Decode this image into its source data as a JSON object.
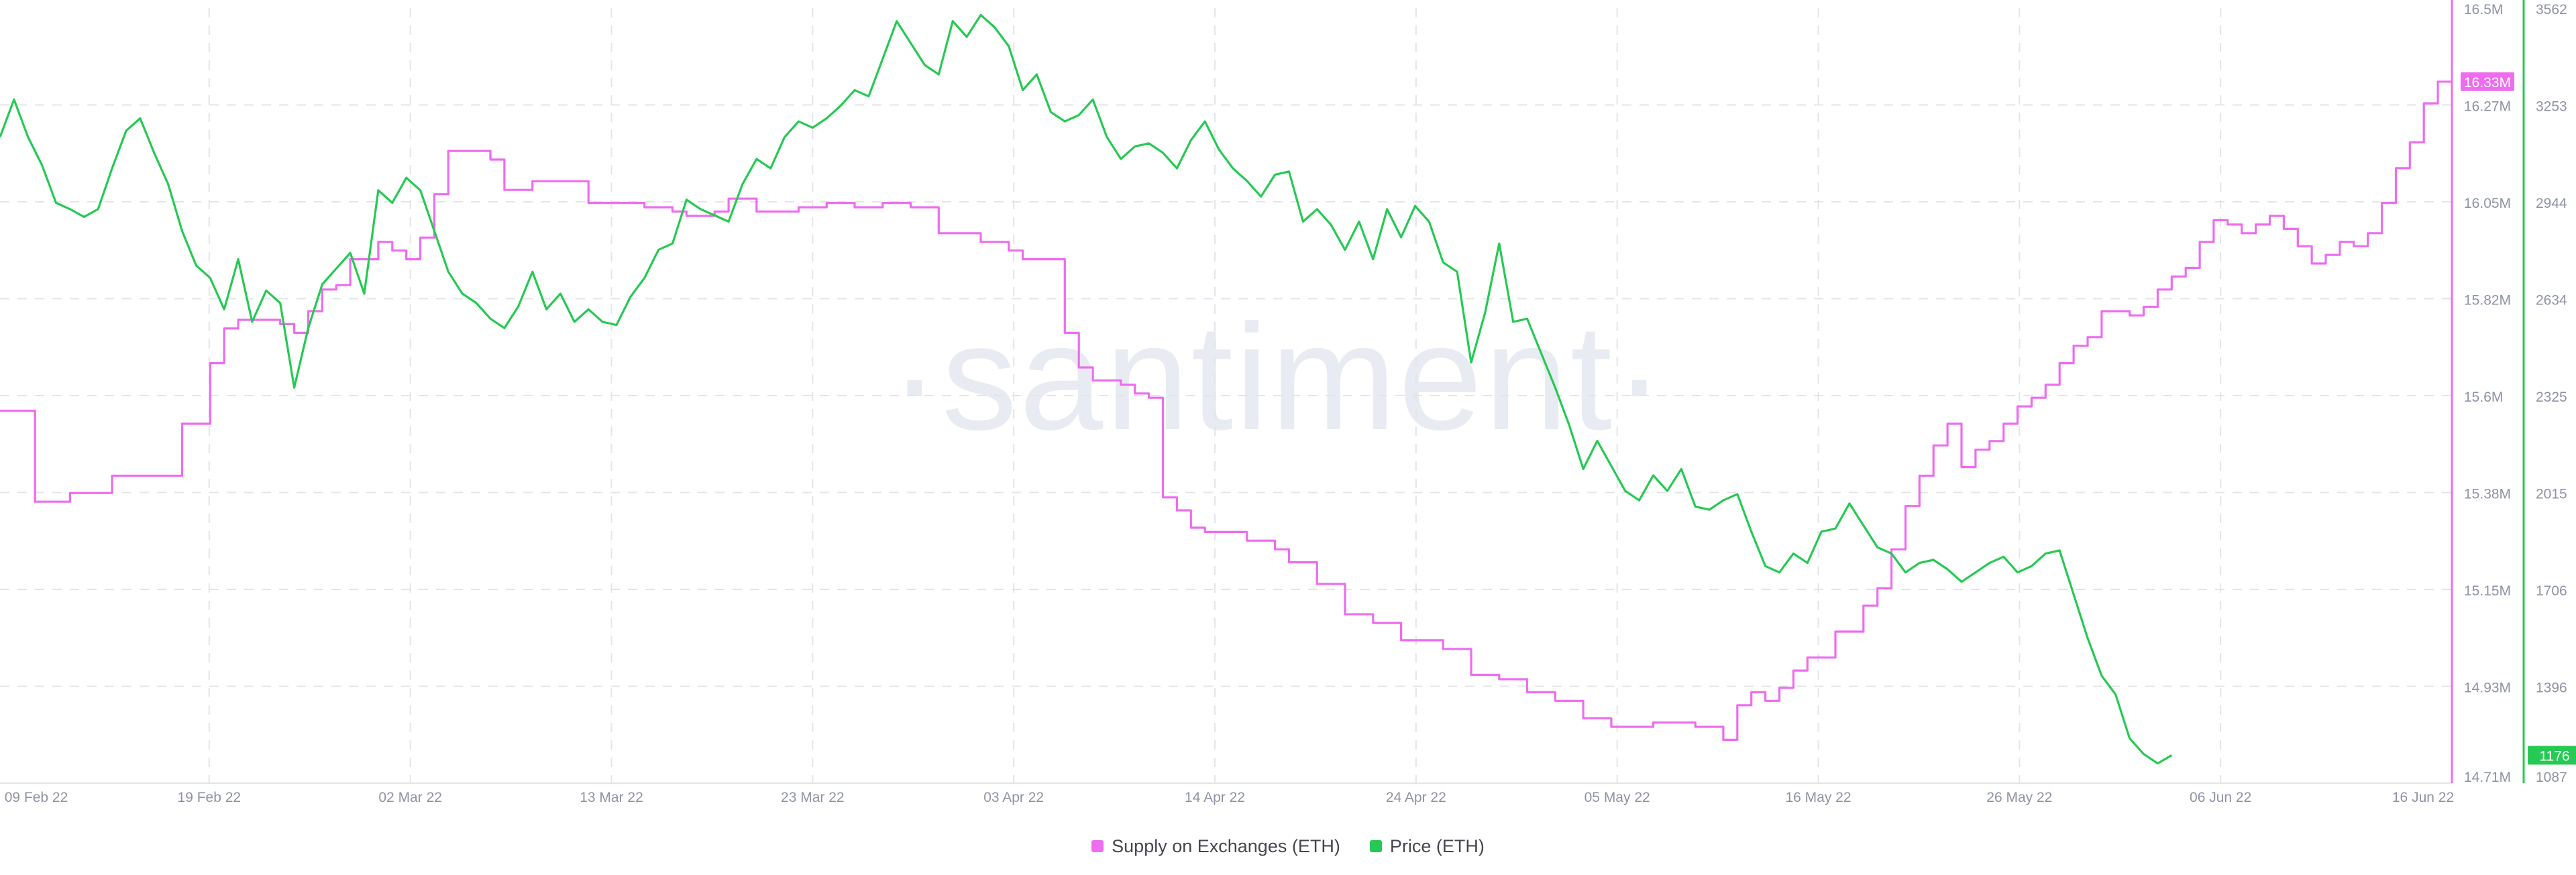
{
  "watermark": "·santiment·",
  "chart_data": {
    "type": "line",
    "x_axis": {
      "tick_labels": [
        "09 Feb 22",
        "19 Feb 22",
        "02 Mar 22",
        "13 Mar 22",
        "23 Mar 22",
        "03 Apr 22",
        "14 Apr 22",
        "24 Apr 22",
        "05 May 22",
        "16 May 22",
        "26 May 22",
        "06 Jun 22",
        "16 Jun 22"
      ],
      "range": [
        "08 Feb 22",
        "16 Jun 22"
      ]
    },
    "y_axis_left": {
      "series": "Supply on Exchanges (ETH)",
      "tick_labels": [
        "16.5M",
        "16.27M",
        "16.05M",
        "15.82M",
        "15.6M",
        "15.38M",
        "15.15M",
        "14.93M",
        "14.71M"
      ],
      "range": [
        14.71,
        16.5
      ],
      "unit": "M"
    },
    "y_axis_right": {
      "series": "Price (ETH)",
      "tick_labels": [
        "3562",
        "3253",
        "2944",
        "2634",
        "2325",
        "2015",
        "1706",
        "1396",
        "1087"
      ],
      "range": [
        1087,
        3562
      ]
    },
    "grid": true,
    "legend_position": "bottom-center",
    "series": [
      {
        "name": "Supply on Exchanges (ETH)",
        "color": "#ee6cf0",
        "axis": "left",
        "last_value_label": "16.33M",
        "points": [
          [
            0,
            15.57
          ],
          [
            2.5,
            15.36
          ],
          [
            5,
            15.38
          ],
          [
            8,
            15.42
          ],
          [
            11,
            15.42
          ],
          [
            13,
            15.54
          ],
          [
            15,
            15.68
          ],
          [
            16,
            15.76
          ],
          [
            17,
            15.78
          ],
          [
            19,
            15.78
          ],
          [
            20,
            15.77
          ],
          [
            21,
            15.75
          ],
          [
            22,
            15.8
          ],
          [
            23,
            15.85
          ],
          [
            24,
            15.86
          ],
          [
            25,
            15.92
          ],
          [
            27,
            15.96
          ],
          [
            28,
            15.94
          ],
          [
            29,
            15.92
          ],
          [
            30,
            15.97
          ],
          [
            31,
            16.07
          ],
          [
            32,
            16.17
          ],
          [
            35,
            16.15
          ],
          [
            36,
            16.08
          ],
          [
            38,
            16.1
          ],
          [
            40,
            16.1
          ],
          [
            42,
            16.05
          ],
          [
            46,
            16.04
          ],
          [
            48,
            16.03
          ],
          [
            49,
            16.02
          ],
          [
            51,
            16.03
          ],
          [
            52,
            16.06
          ],
          [
            54,
            16.03
          ],
          [
            57,
            16.04
          ],
          [
            59,
            16.05
          ],
          [
            61,
            16.04
          ],
          [
            63,
            16.05
          ],
          [
            65,
            16.04
          ],
          [
            67,
            15.98
          ],
          [
            70,
            15.96
          ],
          [
            72,
            15.94
          ],
          [
            73,
            15.92
          ],
          [
            76,
            15.75
          ],
          [
            77,
            15.67
          ],
          [
            78,
            15.64
          ],
          [
            80,
            15.63
          ],
          [
            81,
            15.61
          ],
          [
            82,
            15.6
          ],
          [
            83,
            15.37
          ],
          [
            84,
            15.34
          ],
          [
            85,
            15.3
          ],
          [
            86,
            15.29
          ],
          [
            87,
            15.29
          ],
          [
            89,
            15.27
          ],
          [
            91,
            15.25
          ],
          [
            92,
            15.22
          ],
          [
            94,
            15.17
          ],
          [
            96,
            15.1
          ],
          [
            98,
            15.08
          ],
          [
            100,
            15.04
          ],
          [
            103,
            15.02
          ],
          [
            105,
            14.96
          ],
          [
            107,
            14.95
          ],
          [
            109,
            14.92
          ],
          [
            111,
            14.9
          ],
          [
            113,
            14.86
          ],
          [
            115,
            14.84
          ],
          [
            118,
            14.85
          ],
          [
            121,
            14.84
          ],
          [
            123,
            14.81
          ],
          [
            124,
            14.89
          ],
          [
            125,
            14.92
          ],
          [
            126,
            14.9
          ],
          [
            127,
            14.93
          ],
          [
            128,
            14.97
          ],
          [
            129,
            15.0
          ],
          [
            131,
            15.06
          ],
          [
            133,
            15.12
          ],
          [
            134,
            15.16
          ],
          [
            135,
            15.25
          ],
          [
            136,
            15.35
          ],
          [
            137,
            15.42
          ],
          [
            138,
            15.49
          ],
          [
            139,
            15.54
          ],
          [
            140,
            15.44
          ],
          [
            141,
            15.48
          ],
          [
            142,
            15.5
          ],
          [
            143,
            15.54
          ],
          [
            144,
            15.58
          ],
          [
            145,
            15.6
          ],
          [
            146,
            15.63
          ],
          [
            147,
            15.68
          ],
          [
            148,
            15.72
          ],
          [
            149,
            15.74
          ],
          [
            150,
            15.8
          ],
          [
            152,
            15.79
          ],
          [
            153,
            15.81
          ],
          [
            154,
            15.85
          ],
          [
            155,
            15.88
          ],
          [
            156,
            15.9
          ],
          [
            157,
            15.96
          ],
          [
            158,
            16.01
          ],
          [
            159,
            16.0
          ],
          [
            160,
            15.98
          ],
          [
            161,
            16.0
          ],
          [
            162,
            16.02
          ],
          [
            163,
            15.99
          ],
          [
            164,
            15.95
          ],
          [
            165,
            15.91
          ],
          [
            166,
            15.93
          ],
          [
            167,
            15.96
          ],
          [
            168,
            15.95
          ],
          [
            169,
            15.98
          ],
          [
            170,
            16.05
          ],
          [
            171,
            16.13
          ],
          [
            172,
            16.19
          ],
          [
            173,
            16.28
          ],
          [
            174,
            16.33
          ],
          [
            175,
            16.33
          ]
        ]
      },
      {
        "name": "Price (ETH)",
        "color": "#26c953",
        "axis": "right",
        "last_value_label": "1176",
        "points": [
          [
            0,
            3150
          ],
          [
            1,
            3270
          ],
          [
            2,
            3150
          ],
          [
            3,
            3060
          ],
          [
            4,
            2940
          ],
          [
            5,
            2920
          ],
          [
            6,
            2895
          ],
          [
            7,
            2920
          ],
          [
            8,
            3050
          ],
          [
            9,
            3170
          ],
          [
            10,
            3210
          ],
          [
            11,
            3100
          ],
          [
            12,
            3000
          ],
          [
            13,
            2850
          ],
          [
            14,
            2740
          ],
          [
            15,
            2700
          ],
          [
            16,
            2600
          ],
          [
            17,
            2760
          ],
          [
            18,
            2560
          ],
          [
            19,
            2660
          ],
          [
            20,
            2620
          ],
          [
            21,
            2350
          ],
          [
            22,
            2540
          ],
          [
            23,
            2680
          ],
          [
            24,
            2730
          ],
          [
            25,
            2780
          ],
          [
            26,
            2650
          ],
          [
            27,
            2980
          ],
          [
            28,
            2940
          ],
          [
            29,
            3020
          ],
          [
            30,
            2980
          ],
          [
            31,
            2850
          ],
          [
            32,
            2720
          ],
          [
            33,
            2650
          ],
          [
            34,
            2620
          ],
          [
            35,
            2570
          ],
          [
            36,
            2540
          ],
          [
            37,
            2610
          ],
          [
            38,
            2720
          ],
          [
            39,
            2600
          ],
          [
            40,
            2650
          ],
          [
            41,
            2560
          ],
          [
            42,
            2600
          ],
          [
            43,
            2560
          ],
          [
            44,
            2550
          ],
          [
            45,
            2640
          ],
          [
            46,
            2700
          ],
          [
            47,
            2790
          ],
          [
            48,
            2810
          ],
          [
            49,
            2950
          ],
          [
            50,
            2920
          ],
          [
            51,
            2900
          ],
          [
            52,
            2880
          ],
          [
            53,
            3000
          ],
          [
            54,
            3080
          ],
          [
            55,
            3050
          ],
          [
            56,
            3150
          ],
          [
            57,
            3200
          ],
          [
            58,
            3180
          ],
          [
            59,
            3210
          ],
          [
            60,
            3250
          ],
          [
            61,
            3300
          ],
          [
            62,
            3280
          ],
          [
            63,
            3400
          ],
          [
            64,
            3520
          ],
          [
            65,
            3450
          ],
          [
            66,
            3380
          ],
          [
            67,
            3350
          ],
          [
            68,
            3520
          ],
          [
            69,
            3470
          ],
          [
            70,
            3540
          ],
          [
            71,
            3500
          ],
          [
            72,
            3440
          ],
          [
            73,
            3300
          ],
          [
            74,
            3350
          ],
          [
            75,
            3230
          ],
          [
            76,
            3200
          ],
          [
            77,
            3220
          ],
          [
            78,
            3270
          ],
          [
            79,
            3150
          ],
          [
            80,
            3080
          ],
          [
            81,
            3120
          ],
          [
            82,
            3130
          ],
          [
            83,
            3100
          ],
          [
            84,
            3050
          ],
          [
            85,
            3140
          ],
          [
            86,
            3200
          ],
          [
            87,
            3110
          ],
          [
            88,
            3050
          ],
          [
            89,
            3010
          ],
          [
            90,
            2960
          ],
          [
            91,
            3030
          ],
          [
            92,
            3040
          ],
          [
            93,
            2880
          ],
          [
            94,
            2920
          ],
          [
            95,
            2870
          ],
          [
            96,
            2790
          ],
          [
            97,
            2880
          ],
          [
            98,
            2760
          ],
          [
            99,
            2920
          ],
          [
            100,
            2830
          ],
          [
            101,
            2930
          ],
          [
            102,
            2880
          ],
          [
            103,
            2750
          ],
          [
            104,
            2720
          ],
          [
            105,
            2430
          ],
          [
            106,
            2590
          ],
          [
            107,
            2810
          ],
          [
            108,
            2560
          ],
          [
            109,
            2570
          ],
          [
            110,
            2460
          ],
          [
            111,
            2350
          ],
          [
            112,
            2230
          ],
          [
            113,
            2090
          ],
          [
            114,
            2180
          ],
          [
            115,
            2100
          ],
          [
            116,
            2020
          ],
          [
            117,
            1990
          ],
          [
            118,
            2070
          ],
          [
            119,
            2020
          ],
          [
            120,
            2090
          ],
          [
            121,
            1970
          ],
          [
            122,
            1960
          ],
          [
            123,
            1990
          ],
          [
            124,
            2010
          ],
          [
            125,
            1890
          ],
          [
            126,
            1780
          ],
          [
            127,
            1760
          ],
          [
            128,
            1820
          ],
          [
            129,
            1790
          ],
          [
            130,
            1890
          ],
          [
            131,
            1900
          ],
          [
            132,
            1980
          ],
          [
            133,
            1910
          ],
          [
            134,
            1840
          ],
          [
            135,
            1820
          ],
          [
            136,
            1760
          ],
          [
            137,
            1790
          ],
          [
            138,
            1800
          ],
          [
            139,
            1770
          ],
          [
            140,
            1730
          ],
          [
            141,
            1760
          ],
          [
            142,
            1790
          ],
          [
            143,
            1810
          ],
          [
            144,
            1760
          ],
          [
            145,
            1780
          ],
          [
            146,
            1820
          ],
          [
            147,
            1830
          ],
          [
            148,
            1690
          ],
          [
            149,
            1550
          ],
          [
            150,
            1430
          ],
          [
            151,
            1370
          ],
          [
            152,
            1230
          ],
          [
            153,
            1180
          ],
          [
            154,
            1150
          ],
          [
            155,
            1176
          ]
        ]
      }
    ]
  }
}
